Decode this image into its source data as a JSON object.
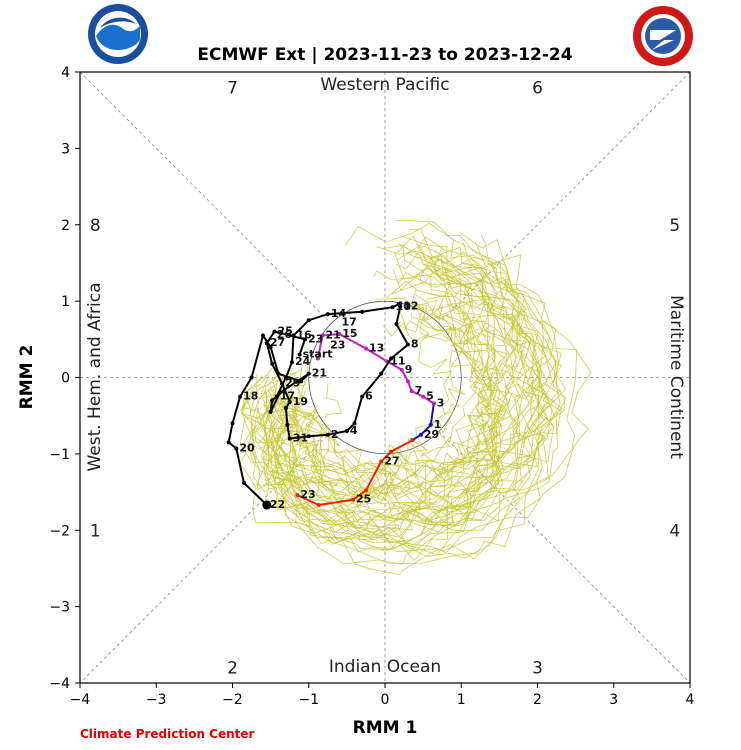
{
  "header": {
    "title": "ECMWF Ext | 2023-11-23 to 2023-12-24"
  },
  "footer": {
    "credit": "Climate Prediction Center"
  },
  "chart_data": {
    "type": "line",
    "xlabel": "RMM 1",
    "ylabel": "RMM 2",
    "xlim": [
      -4,
      4
    ],
    "ylim": [
      -4,
      4
    ],
    "x_ticks": [
      "−4",
      "−3",
      "−2",
      "−1",
      "0",
      "1",
      "2",
      "3",
      "4"
    ],
    "y_ticks": [
      "−4",
      "−3",
      "−2",
      "−1",
      "0",
      "1",
      "2",
      "3",
      "4"
    ],
    "unit_circle_radius": 1,
    "phase_labels": [
      {
        "text": "1",
        "x": -3.8,
        "y": -2.0
      },
      {
        "text": "2",
        "x": -2.0,
        "y": -3.8
      },
      {
        "text": "3",
        "x": 2.0,
        "y": -3.8
      },
      {
        "text": "4",
        "x": 3.8,
        "y": -2.0
      },
      {
        "text": "5",
        "x": 3.8,
        "y": 2.0
      },
      {
        "text": "6",
        "x": 2.0,
        "y": 3.8
      },
      {
        "text": "7",
        "x": -2.0,
        "y": 3.8
      },
      {
        "text": "8",
        "x": -3.8,
        "y": 2.0
      }
    ],
    "region_labels": {
      "top": "Western Pacific",
      "bottom": "Indian Ocean",
      "left": "West. Hem. and Africa",
      "right": "Maritime Continent"
    },
    "colors": {
      "ensemble": "#c8c832",
      "observed_blue": "#1010c8",
      "observed_magenta": "#c020c0",
      "observed_red": "#f02000",
      "forecast_mean": "#000000"
    },
    "series": [
      {
        "color": "#1010c8",
        "points": [
          {
            "x": 0.64,
            "y": -0.34,
            "label": "3"
          },
          {
            "x": 0.6,
            "y": -0.62,
            "label": "1"
          },
          {
            "x": 0.47,
            "y": -0.75,
            "label": "29"
          },
          {
            "x": 0.36,
            "y": -0.82,
            "label": ""
          }
        ]
      },
      {
        "color": "#c020c0",
        "points": [
          {
            "x": -0.88,
            "y": 0.25,
            "label": ""
          },
          {
            "x": -0.82,
            "y": 0.55,
            "label": "21"
          },
          {
            "x": -0.6,
            "y": 0.57,
            "label": "15"
          },
          {
            "x": -0.25,
            "y": 0.38,
            "label": "13"
          },
          {
            "x": 0.03,
            "y": 0.21,
            "label": "11"
          },
          {
            "x": 0.22,
            "y": 0.1,
            "label": "9"
          },
          {
            "x": 0.3,
            "y": -0.05,
            "label": ""
          },
          {
            "x": 0.35,
            "y": -0.18,
            "label": "7"
          },
          {
            "x": 0.5,
            "y": -0.25,
            "label": "5"
          },
          {
            "x": 0.64,
            "y": -0.34,
            "label": ""
          }
        ]
      },
      {
        "color": "#f02000",
        "points": [
          {
            "x": -1.15,
            "y": -1.54,
            "label": "23"
          },
          {
            "x": -0.87,
            "y": -1.67,
            "label": ""
          },
          {
            "x": -0.42,
            "y": -1.6,
            "label": "25"
          },
          {
            "x": -0.25,
            "y": -1.48,
            "label": ""
          },
          {
            "x": -0.05,
            "y": -1.1,
            "label": "27"
          },
          {
            "x": 0.08,
            "y": -0.97,
            "label": ""
          },
          {
            "x": 0.36,
            "y": -0.82,
            "label": ""
          }
        ]
      },
      {
        "color": "#000000",
        "points": [
          {
            "x": -1.12,
            "y": 0.3,
            "label": "start"
          },
          {
            "x": -1.05,
            "y": 0.5,
            "label": "23"
          },
          {
            "x": -1.45,
            "y": 0.6,
            "label": "25"
          },
          {
            "x": -1.55,
            "y": 0.45,
            "label": "27"
          },
          {
            "x": -1.48,
            "y": 0.18,
            "label": ""
          },
          {
            "x": -1.35,
            "y": -0.08,
            "label": "29"
          },
          {
            "x": -1.25,
            "y": -0.32,
            "label": "19"
          },
          {
            "x": -1.3,
            "y": -0.4,
            "label": ""
          },
          {
            "x": -1.28,
            "y": -0.62,
            "label": ""
          },
          {
            "x": -1.25,
            "y": -0.8,
            "label": "31"
          },
          {
            "x": -1.0,
            "y": -0.77,
            "label": ""
          },
          {
            "x": -0.75,
            "y": -0.75,
            "label": "2"
          },
          {
            "x": -0.5,
            "y": -0.7,
            "label": "4"
          },
          {
            "x": -0.4,
            "y": -0.6,
            "label": ""
          },
          {
            "x": -0.3,
            "y": -0.25,
            "label": "6"
          },
          {
            "x": -0.05,
            "y": 0.05,
            "label": ""
          },
          {
            "x": 0.08,
            "y": 0.25,
            "label": ""
          },
          {
            "x": 0.3,
            "y": 0.43,
            "label": "8"
          },
          {
            "x": 0.15,
            "y": 0.7,
            "label": ""
          },
          {
            "x": 0.2,
            "y": 0.93,
            "label": "12"
          },
          {
            "x": 0.2,
            "y": 0.97,
            "label": ""
          },
          {
            "x": 0.1,
            "y": 0.92,
            "label": "10"
          },
          {
            "x": -0.3,
            "y": 0.86,
            "label": ""
          },
          {
            "x": -0.75,
            "y": 0.83,
            "label": "14"
          },
          {
            "x": -1.0,
            "y": 0.75,
            "label": ""
          },
          {
            "x": -1.2,
            "y": 0.55,
            "label": "16"
          },
          {
            "x": -1.22,
            "y": 0.2,
            "label": "24"
          },
          {
            "x": -1.3,
            "y": 0.0,
            "label": ""
          },
          {
            "x": -1.42,
            "y": -0.25,
            "label": "17"
          },
          {
            "x": -1.48,
            "y": -0.3,
            "label": ""
          },
          {
            "x": -1.5,
            "y": -0.45,
            "label": ""
          },
          {
            "x": -1.38,
            "y": -0.2,
            "label": ""
          },
          {
            "x": -1.0,
            "y": 0.05,
            "label": "21"
          },
          {
            "x": -1.1,
            "y": -0.05,
            "label": ""
          },
          {
            "x": -1.4,
            "y": 0.05,
            "label": ""
          },
          {
            "x": -1.5,
            "y": 0.4,
            "label": ""
          },
          {
            "x": -1.6,
            "y": 0.55,
            "label": ""
          },
          {
            "x": -1.75,
            "y": 0.0,
            "label": ""
          },
          {
            "x": -1.9,
            "y": -0.25,
            "label": "18"
          },
          {
            "x": -2.0,
            "y": -0.6,
            "label": ""
          },
          {
            "x": -2.05,
            "y": -0.85,
            "label": ""
          },
          {
            "x": -1.95,
            "y": -0.93,
            "label": "20"
          },
          {
            "x": -1.85,
            "y": -1.38,
            "label": ""
          },
          {
            "x": -1.55,
            "y": -1.67,
            "label": "22"
          }
        ]
      }
    ],
    "extra_labels": [
      {
        "text": "26",
        "x": -1.42,
        "y": 0.52
      },
      {
        "text": "23",
        "x": -0.72,
        "y": 0.38
      },
      {
        "text": "17",
        "x": -0.57,
        "y": 0.68
      }
    ],
    "end_marker": {
      "x": -1.55,
      "y": -1.67
    }
  }
}
